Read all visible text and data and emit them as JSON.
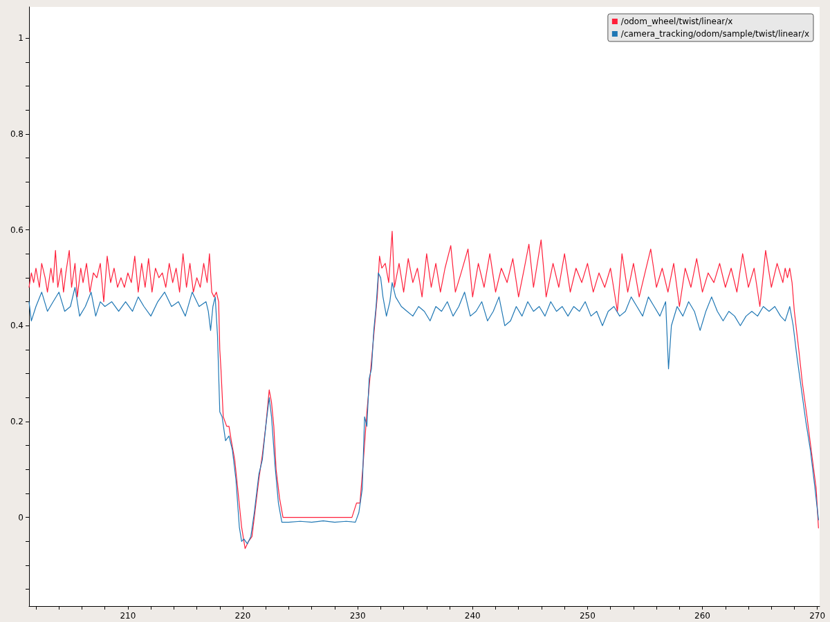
{
  "chart_data": {
    "type": "line",
    "legend": "top right",
    "grid": false,
    "marker": "none",
    "line_style": "solid",
    "xlim": [
      201.4,
      270.2
    ],
    "ylim": [
      -0.185,
      1.065
    ],
    "xticks": [
      {
        "value": 202,
        "label": null
      },
      {
        "value": 204,
        "label": null
      },
      {
        "value": 206,
        "label": null
      },
      {
        "value": 208,
        "label": null
      },
      210,
      {
        "value": 212,
        "label": null
      },
      {
        "value": 214,
        "label": null
      },
      {
        "value": 216,
        "label": null
      },
      {
        "value": 218,
        "label": null
      },
      220,
      {
        "value": 222,
        "label": null
      },
      {
        "value": 224,
        "label": null
      },
      {
        "value": 226,
        "label": null
      },
      {
        "value": 228,
        "label": null
      },
      230,
      {
        "value": 232,
        "label": null
      },
      {
        "value": 234,
        "label": null
      },
      {
        "value": 236,
        "label": null
      },
      {
        "value": 238,
        "label": null
      },
      240,
      {
        "value": 242,
        "label": null
      },
      {
        "value": 244,
        "label": null
      },
      {
        "value": 246,
        "label": null
      },
      {
        "value": 248,
        "label": null
      },
      250,
      {
        "value": 252,
        "label": null
      },
      {
        "value": 254,
        "label": null
      },
      {
        "value": 256,
        "label": null
      },
      {
        "value": 258,
        "label": null
      },
      260,
      {
        "value": 262,
        "label": null
      },
      {
        "value": 264,
        "label": null
      },
      {
        "value": 266,
        "label": null
      },
      {
        "value": 268,
        "label": null
      },
      270
    ],
    "yticks": [
      {
        "value": -0.15,
        "label": null
      },
      {
        "value": -0.1,
        "label": null
      },
      {
        "value": -0.05,
        "label": null
      },
      0,
      {
        "value": 0.05,
        "label": null
      },
      {
        "value": 0.1,
        "label": null
      },
      {
        "value": 0.15,
        "label": null
      },
      0.2,
      {
        "value": 0.25,
        "label": null
      },
      {
        "value": 0.3,
        "label": null
      },
      {
        "value": 0.35,
        "label": null
      },
      0.4,
      {
        "value": 0.45,
        "label": null
      },
      {
        "value": 0.5,
        "label": null
      },
      {
        "value": 0.55,
        "label": null
      },
      0.6,
      {
        "value": 0.65,
        "label": null
      },
      {
        "value": 0.7,
        "label": null
      },
      {
        "value": 0.75,
        "label": null
      },
      0.8,
      {
        "value": 0.85,
        "label": null
      },
      {
        "value": 0.9,
        "label": null
      },
      {
        "value": 0.95,
        "label": null
      },
      1
    ],
    "series": [
      {
        "name": "/odom_wheel/twist/linear/x",
        "color": "#ff1f3a",
        "x": [
          201.4,
          201.6,
          201.8,
          202.0,
          202.3,
          202.5,
          202.8,
          203.0,
          203.3,
          203.5,
          203.7,
          203.9,
          204.2,
          204.4,
          204.6,
          204.9,
          205.1,
          205.4,
          205.6,
          205.9,
          206.1,
          206.4,
          206.7,
          207.0,
          207.3,
          207.6,
          207.9,
          208.2,
          208.5,
          208.8,
          209.1,
          209.4,
          209.7,
          210.0,
          210.3,
          210.6,
          210.9,
          211.2,
          211.5,
          211.8,
          212.1,
          212.4,
          212.7,
          213.0,
          213.3,
          213.6,
          213.9,
          214.2,
          214.5,
          214.8,
          215.1,
          215.4,
          215.7,
          216.0,
          216.3,
          216.6,
          216.9,
          217.1,
          217.3,
          217.5,
          217.7,
          217.9,
          218.0,
          218.1,
          218.3,
          218.6,
          218.8,
          219.0,
          219.3,
          219.6,
          219.9,
          220.2,
          220.5,
          220.8,
          221.1,
          221.4,
          221.7,
          222.0,
          222.3,
          222.5,
          222.7,
          222.9,
          223.2,
          223.5,
          229.5,
          229.9,
          230.2,
          230.5,
          230.8,
          231.1,
          231.4,
          231.7,
          231.9,
          232.1,
          232.4,
          232.7,
          233.0,
          233.2,
          233.6,
          234.0,
          234.4,
          234.8,
          235.2,
          235.6,
          236.0,
          236.4,
          236.8,
          237.2,
          237.6,
          238.1,
          238.5,
          239.0,
          239.6,
          240.0,
          240.5,
          241.0,
          241.5,
          242.0,
          242.5,
          243.0,
          243.5,
          244.0,
          244.5,
          244.9,
          245.3,
          245.96,
          246.4,
          247.0,
          247.5,
          248.0,
          248.5,
          249.0,
          249.5,
          250.0,
          250.5,
          251.0,
          251.5,
          252.0,
          252.6,
          253.0,
          253.5,
          254.0,
          254.5,
          255.0,
          255.5,
          256.0,
          256.5,
          257.0,
          257.5,
          258.0,
          258.5,
          259.0,
          259.5,
          260.0,
          260.5,
          261.0,
          261.5,
          262.0,
          262.5,
          263.0,
          263.5,
          264.0,
          264.5,
          265.0,
          265.5,
          266.0,
          266.5,
          267.0,
          267.2,
          267.4,
          267.6,
          267.8,
          268.0,
          268.4,
          268.7,
          269.1,
          269.6,
          269.9,
          270.1
        ],
        "values": [
          0.48,
          0.51,
          0.49,
          0.52,
          0.48,
          0.53,
          0.5,
          0.47,
          0.52,
          0.49,
          0.557,
          0.48,
          0.52,
          0.47,
          0.51,
          0.557,
          0.48,
          0.53,
          0.46,
          0.52,
          0.49,
          0.53,
          0.47,
          0.51,
          0.5,
          0.53,
          0.45,
          0.545,
          0.49,
          0.52,
          0.48,
          0.5,
          0.48,
          0.51,
          0.49,
          0.545,
          0.47,
          0.53,
          0.48,
          0.54,
          0.47,
          0.52,
          0.5,
          0.51,
          0.48,
          0.53,
          0.49,
          0.52,
          0.47,
          0.55,
          0.48,
          0.53,
          0.47,
          0.5,
          0.48,
          0.53,
          0.49,
          0.55,
          0.47,
          0.46,
          0.47,
          0.45,
          0.35,
          0.31,
          0.21,
          0.19,
          0.19,
          0.16,
          0.12,
          0.05,
          -0.02,
          -0.065,
          -0.05,
          -0.04,
          0.02,
          0.08,
          0.13,
          0.19,
          0.266,
          0.24,
          0.19,
          0.1,
          0.04,
          0.0,
          0.0,
          0.03,
          0.03,
          0.12,
          0.22,
          0.3,
          0.38,
          0.46,
          0.545,
          0.52,
          0.53,
          0.49,
          0.597,
          0.48,
          0.53,
          0.47,
          0.54,
          0.49,
          0.52,
          0.46,
          0.55,
          0.48,
          0.53,
          0.47,
          0.52,
          0.567,
          0.47,
          0.51,
          0.56,
          0.46,
          0.53,
          0.48,
          0.55,
          0.47,
          0.52,
          0.49,
          0.54,
          0.46,
          0.52,
          0.57,
          0.48,
          0.579,
          0.46,
          0.53,
          0.48,
          0.55,
          0.47,
          0.52,
          0.49,
          0.53,
          0.47,
          0.51,
          0.48,
          0.52,
          0.43,
          0.55,
          0.47,
          0.53,
          0.46,
          0.51,
          0.56,
          0.48,
          0.52,
          0.47,
          0.53,
          0.44,
          0.52,
          0.48,
          0.54,
          0.47,
          0.51,
          0.49,
          0.53,
          0.48,
          0.52,
          0.47,
          0.55,
          0.48,
          0.52,
          0.44,
          0.557,
          0.48,
          0.53,
          0.49,
          0.52,
          0.5,
          0.52,
          0.49,
          0.43,
          0.347,
          0.28,
          0.21,
          0.116,
          0.06,
          -0.022
        ]
      },
      {
        "name": "/camera_tracking/odom/sample/twist/linear/x",
        "color": "#1f77b4",
        "x": [
          201.4,
          201.6,
          202.0,
          202.5,
          203.0,
          203.5,
          204.0,
          204.5,
          205.0,
          205.4,
          205.8,
          206.3,
          206.8,
          207.2,
          207.6,
          208.0,
          208.6,
          209.2,
          209.8,
          210.4,
          210.9,
          211.4,
          212.0,
          212.6,
          213.2,
          213.8,
          214.4,
          215.0,
          215.6,
          216.2,
          216.8,
          217.0,
          217.2,
          217.4,
          217.6,
          217.8,
          218.0,
          218.2,
          218.5,
          218.8,
          219.1,
          219.4,
          219.7,
          219.9,
          220.1,
          220.4,
          220.7,
          221.0,
          221.4,
          221.7,
          222.0,
          222.3,
          222.5,
          222.8,
          223.1,
          223.4,
          224.0,
          225.0,
          226.0,
          227.0,
          228.0,
          229.0,
          229.8,
          230.1,
          230.4,
          230.6,
          230.8,
          231.0,
          231.2,
          231.4,
          231.6,
          231.8,
          232.0,
          232.2,
          232.5,
          232.8,
          233.0,
          233.3,
          233.8,
          234.3,
          234.8,
          235.3,
          235.8,
          236.3,
          236.8,
          237.3,
          237.8,
          238.3,
          238.8,
          239.3,
          239.8,
          240.3,
          240.8,
          241.3,
          241.8,
          242.3,
          242.8,
          243.3,
          243.8,
          244.3,
          244.8,
          245.3,
          245.8,
          246.3,
          246.8,
          247.3,
          247.8,
          248.3,
          248.8,
          249.3,
          249.8,
          250.3,
          250.8,
          251.3,
          251.8,
          252.3,
          252.8,
          253.3,
          253.8,
          254.3,
          254.8,
          255.3,
          255.8,
          256.3,
          256.8,
          257.05,
          257.3,
          257.8,
          258.3,
          258.8,
          259.3,
          259.8,
          260.3,
          260.8,
          261.3,
          261.8,
          262.3,
          262.8,
          263.3,
          263.8,
          264.3,
          264.8,
          265.3,
          265.8,
          266.3,
          266.8,
          267.2,
          267.6,
          267.9,
          268.2,
          268.6,
          269.0,
          269.4,
          269.8,
          270.1
        ],
        "values": [
          0.45,
          0.41,
          0.44,
          0.47,
          0.43,
          0.45,
          0.47,
          0.43,
          0.44,
          0.48,
          0.42,
          0.44,
          0.47,
          0.42,
          0.45,
          0.44,
          0.45,
          0.43,
          0.45,
          0.43,
          0.46,
          0.44,
          0.42,
          0.45,
          0.47,
          0.44,
          0.45,
          0.42,
          0.47,
          0.44,
          0.45,
          0.43,
          0.39,
          0.44,
          0.46,
          0.38,
          0.22,
          0.21,
          0.16,
          0.17,
          0.14,
          0.08,
          -0.02,
          -0.05,
          -0.045,
          -0.055,
          -0.04,
          0.01,
          0.09,
          0.12,
          0.19,
          0.25,
          0.21,
          0.11,
          0.03,
          -0.01,
          -0.01,
          -0.008,
          -0.01,
          -0.007,
          -0.01,
          -0.008,
          -0.01,
          0.01,
          0.06,
          0.21,
          0.19,
          0.29,
          0.31,
          0.39,
          0.44,
          0.51,
          0.5,
          0.46,
          0.42,
          0.45,
          0.49,
          0.46,
          0.44,
          0.43,
          0.42,
          0.44,
          0.43,
          0.41,
          0.44,
          0.43,
          0.45,
          0.42,
          0.44,
          0.47,
          0.42,
          0.43,
          0.45,
          0.41,
          0.43,
          0.46,
          0.4,
          0.41,
          0.44,
          0.42,
          0.45,
          0.43,
          0.44,
          0.42,
          0.45,
          0.43,
          0.44,
          0.42,
          0.44,
          0.43,
          0.45,
          0.42,
          0.43,
          0.4,
          0.43,
          0.44,
          0.42,
          0.43,
          0.46,
          0.44,
          0.42,
          0.46,
          0.44,
          0.42,
          0.45,
          0.31,
          0.4,
          0.44,
          0.42,
          0.45,
          0.43,
          0.39,
          0.43,
          0.46,
          0.43,
          0.41,
          0.43,
          0.42,
          0.4,
          0.42,
          0.43,
          0.42,
          0.44,
          0.43,
          0.44,
          0.42,
          0.41,
          0.44,
          0.4,
          0.34,
          0.27,
          0.2,
          0.14,
          0.06,
          -0.005
        ]
      }
    ]
  }
}
